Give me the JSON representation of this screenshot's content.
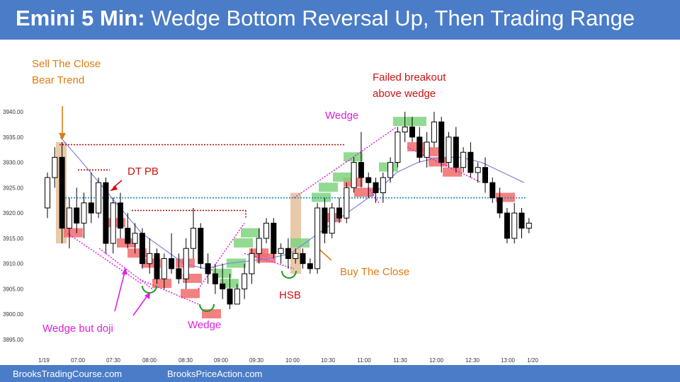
{
  "header": {
    "title_bold": "Emini 5 Min:",
    "title_rest": " Wedge Bottom Reversal Up, Then Trading Range"
  },
  "footer": {
    "left_link": "BrooksTradingCourse.com",
    "right_link": "BrooksPriceAction.com"
  },
  "colors": {
    "header_bg": "#4a7cc7",
    "bull_box": "#7fd37f",
    "bear_box": "#f26b6b",
    "entry_bar": "#e8c9a8",
    "orange_text": "#e07b10",
    "red_text": "#d01010",
    "magenta": "#e020e0",
    "ema": "#8080e0",
    "dotted_blue": "#1a8fc0"
  },
  "chart_data": {
    "type": "candlestick",
    "y_ticks": [
      "3940.00",
      "3935.00",
      "3930.00",
      "3925.00",
      "3920.00",
      "3915.00",
      "3910.00",
      "3905.00",
      "3900.00",
      "3895.00"
    ],
    "x_ticks": [
      "1/19",
      "07:00",
      "07:30",
      "08:00",
      "08:30",
      "09:00",
      "09:30",
      "10:00",
      "10:30",
      "11:00",
      "11:30",
      "12:00",
      "12:30",
      "13:00",
      "1/20"
    ],
    "ylim": [
      3893,
      3942
    ],
    "candles": [
      [
        3921,
        3928,
        3919,
        3927
      ],
      [
        3927,
        3933,
        3925,
        3931
      ],
      [
        3931,
        3934,
        3914,
        3917
      ],
      [
        3917,
        3923,
        3913,
        3921
      ],
      [
        3921,
        3925,
        3916,
        3918
      ],
      [
        3918,
        3924,
        3915,
        3922
      ],
      [
        3922,
        3928,
        3918,
        3920
      ],
      [
        3920,
        3927,
        3919,
        3926
      ],
      [
        3926,
        3927,
        3912,
        3914
      ],
      [
        3914,
        3923,
        3912,
        3922
      ],
      [
        3922,
        3924,
        3915,
        3917
      ],
      [
        3917,
        3920,
        3913,
        3914
      ],
      [
        3914,
        3918,
        3912,
        3916
      ],
      [
        3916,
        3917,
        3909,
        3910
      ],
      [
        3910,
        3915,
        3908,
        3912
      ],
      [
        3912,
        3913,
        3906,
        3907
      ],
      [
        3907,
        3912,
        3905,
        3911
      ],
      [
        3911,
        3916,
        3908,
        3909
      ],
      [
        3909,
        3912,
        3906,
        3907
      ],
      [
        3907,
        3915,
        3905,
        3913
      ],
      [
        3913,
        3921,
        3911,
        3917
      ],
      [
        3917,
        3918,
        3909,
        3910
      ],
      [
        3910,
        3912,
        3906,
        3908
      ],
      [
        3908,
        3910,
        3904,
        3906
      ],
      [
        3906,
        3910,
        3903,
        3905
      ],
      [
        3905,
        3908,
        3901,
        3902
      ],
      [
        3902,
        3906,
        3902,
        3905
      ],
      [
        3905,
        3910,
        3903,
        3908
      ],
      [
        3908,
        3913,
        3906,
        3912
      ],
      [
        3912,
        3917,
        3910,
        3915
      ],
      [
        3915,
        3919,
        3914,
        3918
      ],
      [
        3918,
        3919,
        3911,
        3912
      ],
      [
        3912,
        3914,
        3910,
        3913
      ],
      [
        3913,
        3915,
        3909,
        3911
      ],
      [
        3911,
        3913,
        3910,
        3912
      ],
      [
        3912,
        3913,
        3909,
        3910
      ],
      [
        3910,
        3911,
        3908,
        3909
      ],
      [
        3909,
        3922,
        3908,
        3921
      ],
      [
        3921,
        3923,
        3914,
        3916
      ],
      [
        3916,
        3922,
        3915,
        3921
      ],
      [
        3921,
        3923,
        3918,
        3919
      ],
      [
        3919,
        3926,
        3918,
        3925
      ],
      [
        3925,
        3931,
        3924,
        3930
      ],
      [
        3930,
        3936,
        3925,
        3927
      ],
      [
        3927,
        3928,
        3923,
        3926
      ],
      [
        3926,
        3927,
        3922,
        3924
      ],
      [
        3924,
        3928,
        3922,
        3927
      ],
      [
        3927,
        3931,
        3926,
        3930
      ],
      [
        3930,
        3937,
        3929,
        3936
      ],
      [
        3936,
        3940,
        3934,
        3937
      ],
      [
        3937,
        3939,
        3934,
        3935
      ],
      [
        3935,
        3937,
        3930,
        3931
      ],
      [
        3931,
        3936,
        3929,
        3934
      ],
      [
        3934,
        3940,
        3933,
        3938
      ],
      [
        3938,
        3939,
        3928,
        3930
      ],
      [
        3930,
        3936,
        3929,
        3935
      ],
      [
        3935,
        3937,
        3928,
        3929
      ],
      [
        3929,
        3933,
        3928,
        3932
      ],
      [
        3932,
        3934,
        3927,
        3928
      ],
      [
        3928,
        3930,
        3926,
        3929
      ],
      [
        3929,
        3931,
        3924,
        3926
      ],
      [
        3926,
        3927,
        3922,
        3923
      ],
      [
        3923,
        3925,
        3919,
        3920
      ],
      [
        3920,
        3921,
        3914,
        3915
      ],
      [
        3915,
        3922,
        3914,
        3920
      ],
      [
        3920,
        3921,
        3915,
        3917
      ],
      [
        3917,
        3919,
        3916,
        3918
      ]
    ],
    "annotations": [
      "Sell The Close",
      "Bear Trend",
      "DT PB",
      "Failed breakout",
      "above wedge",
      "Wedge",
      "Wedge but doji",
      "Wedge",
      "HSB",
      "Buy The Close"
    ]
  }
}
